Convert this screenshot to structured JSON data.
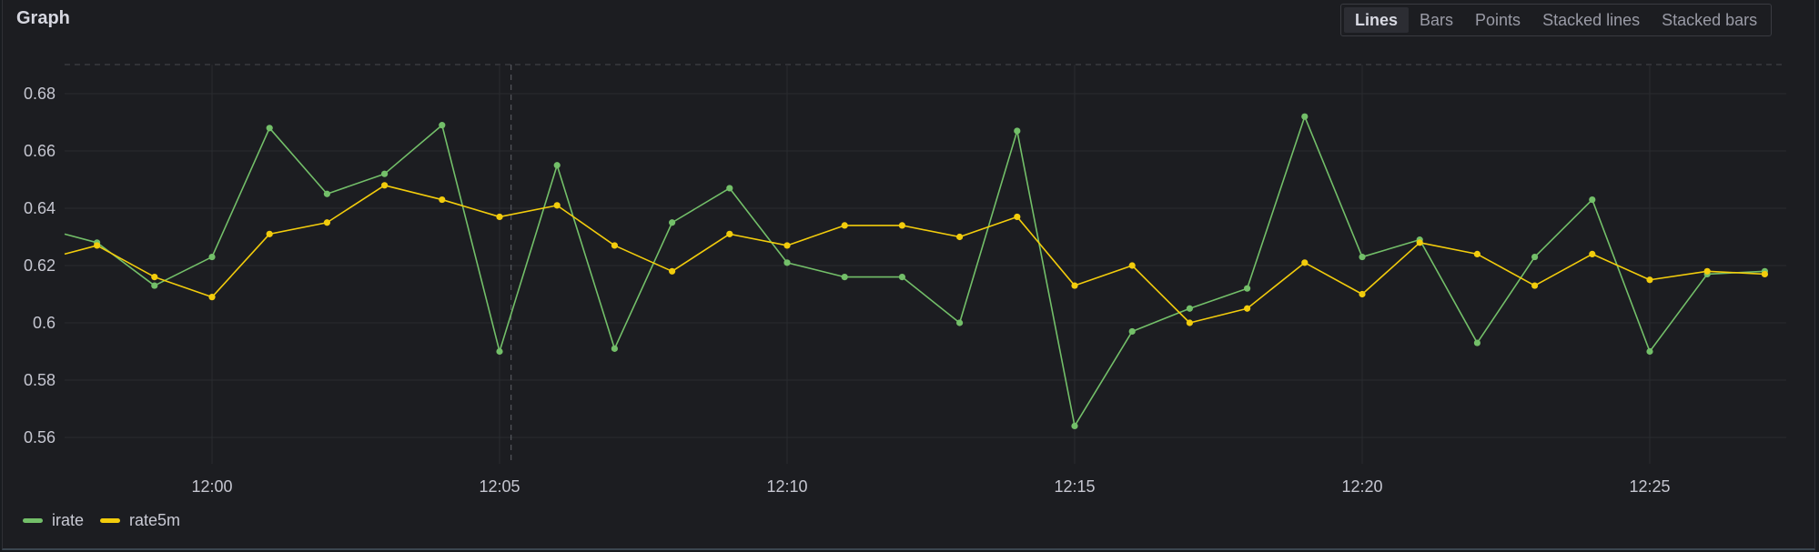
{
  "panel": {
    "title": "Graph"
  },
  "toolbar": {
    "modes": [
      {
        "label": "Lines",
        "active": true
      },
      {
        "label": "Bars",
        "active": false
      },
      {
        "label": "Points",
        "active": false
      },
      {
        "label": "Stacked lines",
        "active": false
      },
      {
        "label": "Stacked bars",
        "active": false
      }
    ]
  },
  "legend": {
    "items": [
      {
        "label": "irate",
        "color": "#73bf69"
      },
      {
        "label": "rate5m",
        "color": "#f2cc0c"
      }
    ]
  },
  "colors": {
    "background": "#1c1d21",
    "grid": "#2a2b30",
    "irate": "#73bf69",
    "rate5m": "#f2cc0c"
  },
  "chart_data": {
    "type": "line",
    "title": "Graph",
    "xlabel": "",
    "ylabel": "",
    "ylim": [
      0.55,
      0.69
    ],
    "yticks": [
      "0.68",
      "0.66",
      "0.64",
      "0.62",
      "0.6",
      "0.58",
      "0.56"
    ],
    "xticks": [
      "12:00",
      "12:05",
      "12:10",
      "12:15",
      "12:20",
      "12:25"
    ],
    "grid": true,
    "legend_position": "bottom-left",
    "x": [
      "11:57.2",
      "11:58",
      "11:59",
      "12:00",
      "12:01",
      "12:02",
      "12:03",
      "12:04",
      "12:05",
      "12:06",
      "12:07",
      "12:08",
      "12:09",
      "12:10",
      "12:11",
      "12:12",
      "12:13",
      "12:14",
      "12:15",
      "12:16",
      "12:17",
      "12:18",
      "12:19",
      "12:20",
      "12:21",
      "12:22",
      "12:23",
      "12:24",
      "12:25",
      "12:26",
      "12:27"
    ],
    "series": [
      {
        "name": "irate",
        "color": "#73bf69",
        "values": [
          0.631,
          0.628,
          0.613,
          0.623,
          0.668,
          0.645,
          0.652,
          0.669,
          0.59,
          0.655,
          0.591,
          0.635,
          0.647,
          0.621,
          0.616,
          0.616,
          0.6,
          0.667,
          0.564,
          0.597,
          0.605,
          0.612,
          0.672,
          0.623,
          0.629,
          0.593,
          0.623,
          0.643,
          0.59,
          0.617,
          0.618
        ]
      },
      {
        "name": "rate5m",
        "color": "#f2cc0c",
        "values": [
          0.624,
          0.627,
          0.616,
          0.609,
          0.631,
          0.635,
          0.648,
          0.643,
          0.637,
          0.641,
          0.627,
          0.618,
          0.631,
          0.627,
          0.634,
          0.634,
          0.63,
          0.637,
          0.613,
          0.62,
          0.6,
          0.605,
          0.621,
          0.61,
          0.628,
          0.624,
          0.613,
          0.624,
          0.615,
          0.618,
          0.617
        ]
      }
    ],
    "hover_crosshair_x": "12:05.2"
  }
}
